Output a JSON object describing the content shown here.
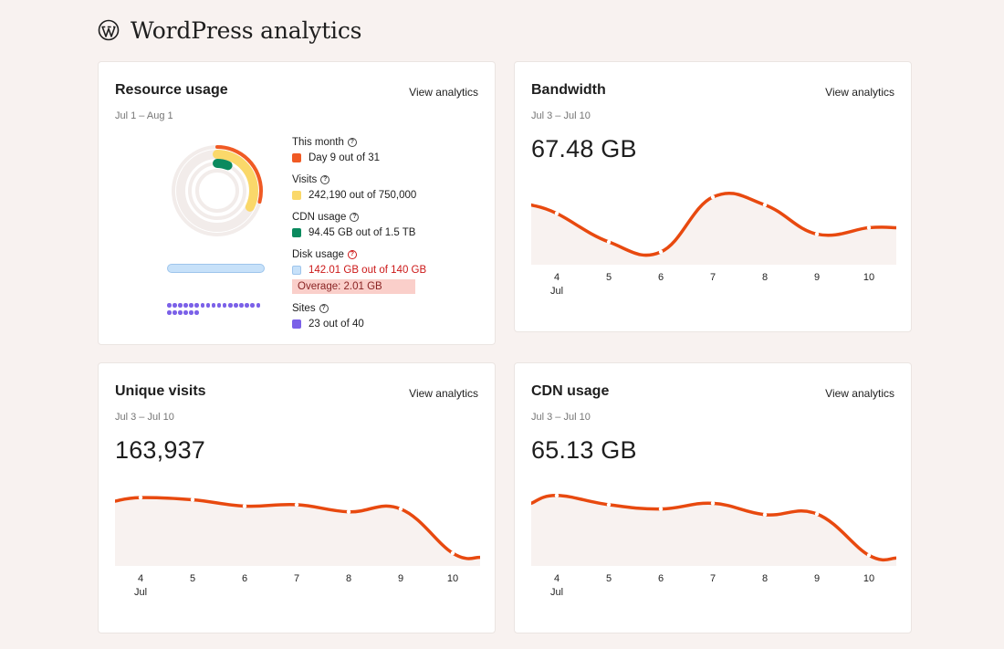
{
  "page": {
    "title": "WordPress analytics",
    "logo_icon": "wordpress-logo-icon"
  },
  "colors": {
    "accent": "#e8490f",
    "area_fill": "#f8f2f0",
    "month": "#f05a24",
    "visits": "#fad86a",
    "cdn": "#0a8a5e",
    "disk": "#c7e1f9",
    "sites": "#7b61e8",
    "error": "#cc1818"
  },
  "resource": {
    "title": "Resource usage",
    "link": "View analytics",
    "date_range": "Jul 1 – Aug 1",
    "groups": [
      {
        "heading": "This month",
        "text": "Day 9 out of 31",
        "fraction": 0.29
      },
      {
        "heading": "Visits",
        "text": "242,190 out of 750,000",
        "fraction": 0.323
      },
      {
        "heading": "CDN usage",
        "text": "94.45 GB out of 1.5 TB",
        "fraction": 0.063
      },
      {
        "heading": "Disk usage",
        "text": "142.01 GB out of 140 GB",
        "overage": "Overage: 2.01 GB",
        "fraction": 1.0
      },
      {
        "heading": "Sites",
        "text": "23 out of 40",
        "fraction": 0.575
      }
    ]
  },
  "bandwidth": {
    "title": "Bandwidth",
    "link": "View analytics",
    "date_range": "Jul 3 – Jul 10",
    "value": "67.48 GB"
  },
  "unique_visits": {
    "title": "Unique visits",
    "link": "View analytics",
    "date_range": "Jul 3 – Jul 10",
    "value": "163,937"
  },
  "cdn_usage": {
    "title": "CDN usage",
    "link": "View analytics",
    "date_range": "Jul 3 – Jul 10",
    "value": "65.13 GB"
  },
  "chart_data": [
    {
      "type": "area",
      "title": "Bandwidth",
      "x": [
        "4",
        "5",
        "6",
        "7",
        "8",
        "9",
        "10"
      ],
      "month_label": "Jul",
      "values": [
        0.72,
        0.32,
        0.18,
        0.95,
        0.84,
        0.43,
        0.52
      ],
      "start_value": 0.84,
      "end_value": 0.52
    },
    {
      "type": "area",
      "title": "Unique visits",
      "x": [
        "4",
        "5",
        "6",
        "7",
        "8",
        "9",
        "10"
      ],
      "month_label": "Jul",
      "values": [
        0.96,
        0.93,
        0.84,
        0.86,
        0.76,
        0.8,
        0.18
      ],
      "start_value": 0.91,
      "end_value": 0.12
    },
    {
      "type": "area",
      "title": "CDN usage",
      "x": [
        "4",
        "5",
        "6",
        "7",
        "8",
        "9",
        "10"
      ],
      "month_label": "Jul",
      "values": [
        0.99,
        0.86,
        0.8,
        0.88,
        0.72,
        0.73,
        0.15
      ],
      "start_value": 0.88,
      "end_value": 0.11
    }
  ]
}
